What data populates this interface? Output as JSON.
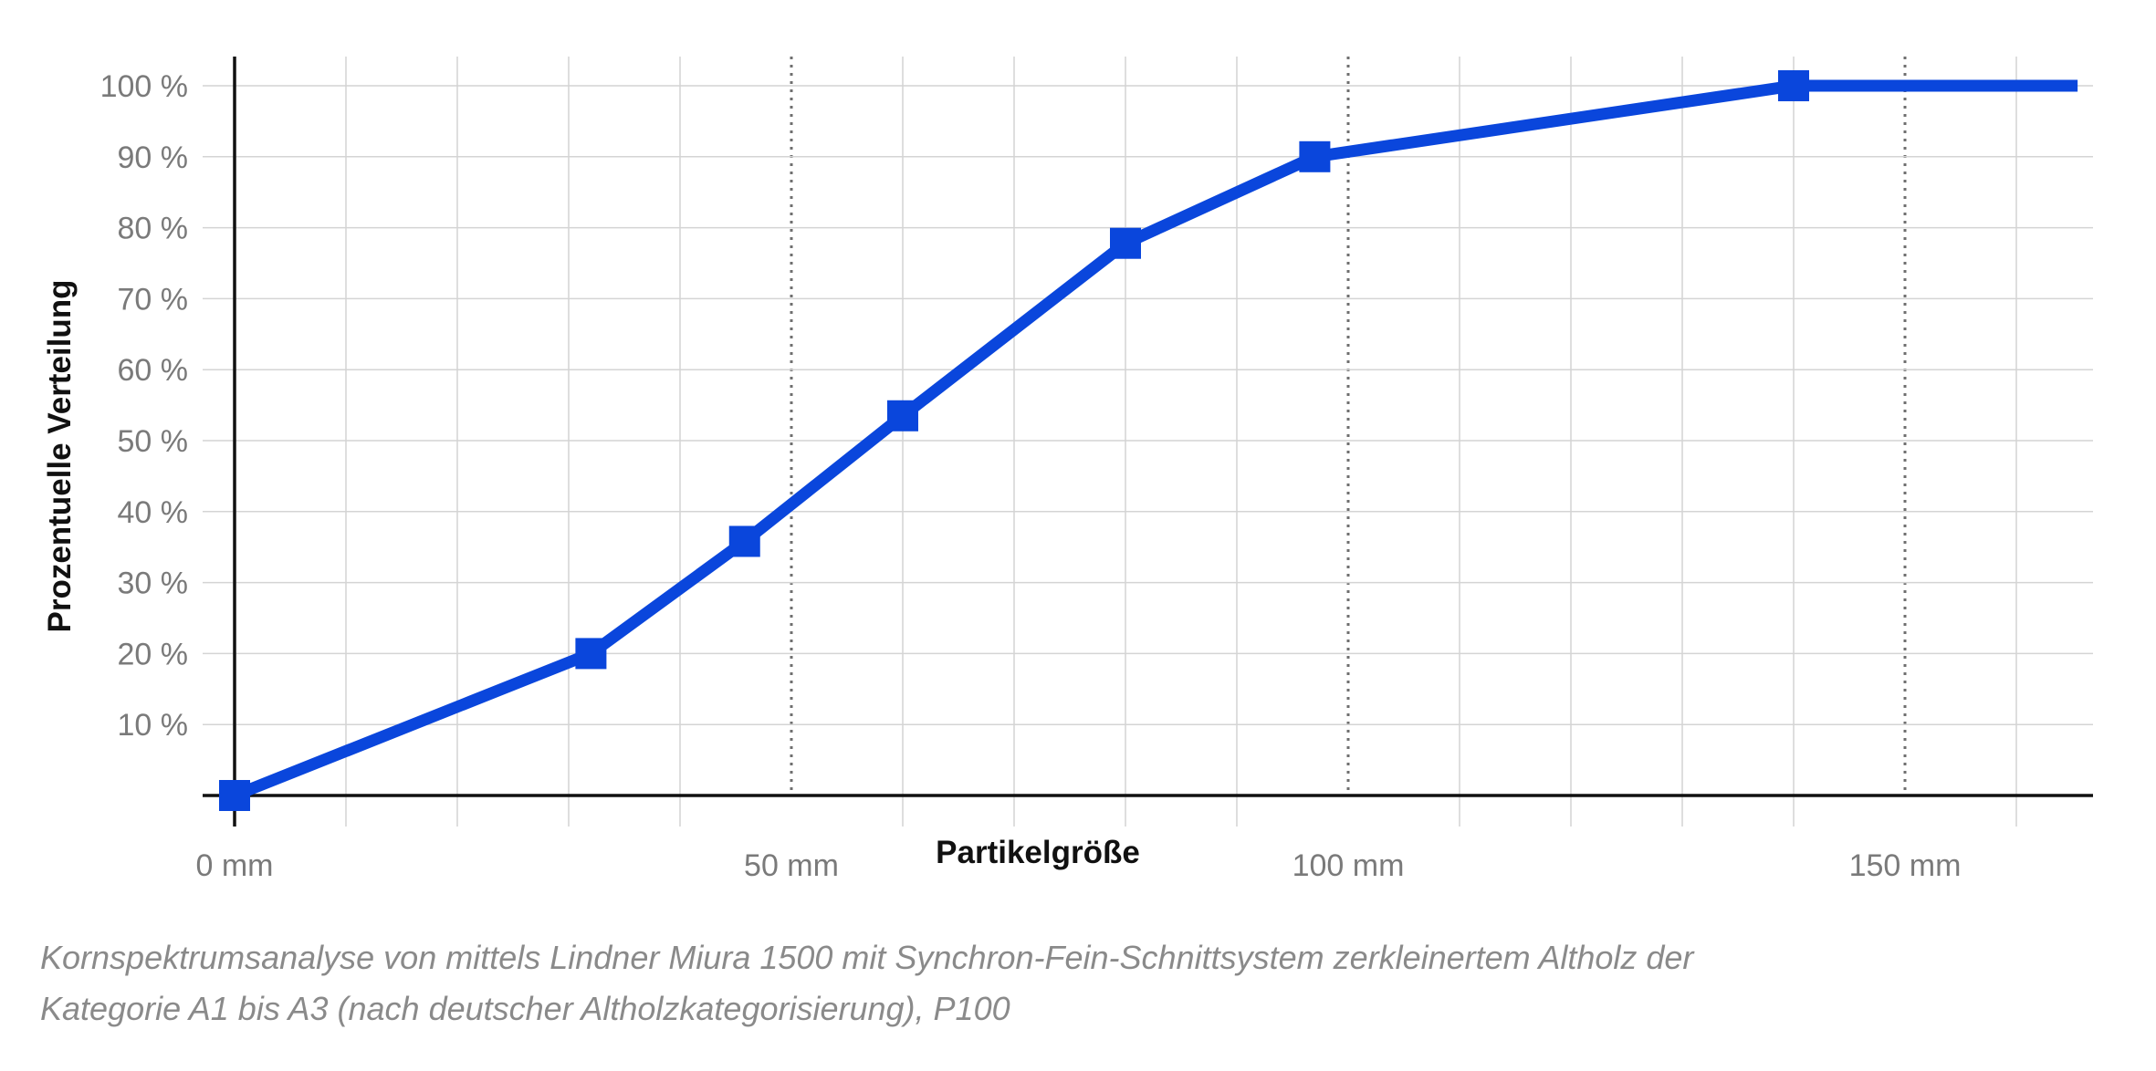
{
  "chart_data": {
    "type": "line",
    "title": "",
    "xlabel": "Partikelgröße",
    "ylabel": "Prozentuelle Verteilung",
    "xlim": [
      0,
      167
    ],
    "ylim": [
      0,
      100
    ],
    "x_ticks": [
      0,
      50,
      100,
      150
    ],
    "x_tick_labels": [
      "0 mm",
      "50 mm",
      "100 mm",
      "150 mm"
    ],
    "y_ticks": [
      10,
      20,
      30,
      40,
      50,
      60,
      70,
      80,
      90,
      100
    ],
    "y_tick_labels": [
      "10 %",
      "20 %",
      "30 %",
      "40 %",
      "50 %",
      "60 %",
      "70 %",
      "80 %",
      "90 %",
      "100 %"
    ],
    "grid": true,
    "series": [
      {
        "color": "#0a46dc",
        "x": [
          0,
          32,
          45.8,
          60,
          80,
          97,
          140,
          165.5
        ],
        "y": [
          0,
          20,
          35.8,
          53.5,
          77.8,
          90,
          100,
          100
        ],
        "markers": [
          true,
          true,
          true,
          true,
          true,
          true,
          true,
          false
        ]
      }
    ]
  },
  "caption": {
    "line1": "Kornspektrumsanalyse von mittels Lindner Miura 1500 mit Synchron-Fein-Schnittsystem zerkleinertem Altholz der",
    "line2": "Kategorie A1 bis A3 (nach deutscher Altholzkategorisierung), P100"
  }
}
